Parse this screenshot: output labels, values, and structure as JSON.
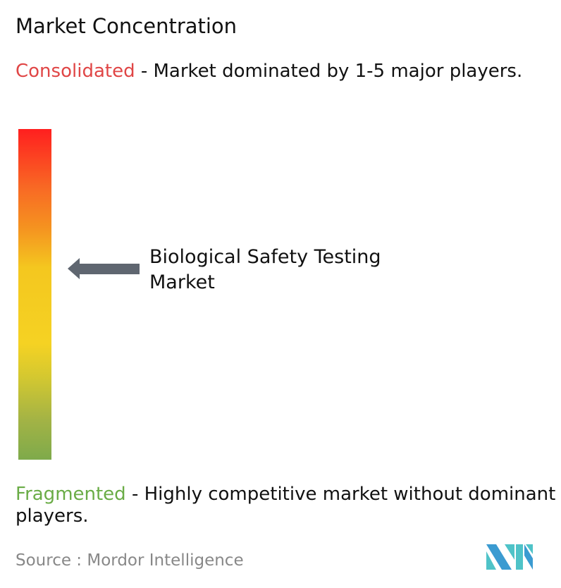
{
  "title": "Market Concentration",
  "consolidated": {
    "label": "Consolidated",
    "description": " - Market dominated by 1-5 major players.",
    "color": "#e04646"
  },
  "fragmented": {
    "label": "Fragmented",
    "description": " - Highly competitive market without dominant players.",
    "color": "#6aac46"
  },
  "scale": {
    "top_color": "#ff1f1f",
    "bottom_color": "#7eaa4b"
  },
  "marker": {
    "label": "Biological Safety Testing Market",
    "icon": "left-arrow-icon",
    "color": "#5f6670"
  },
  "source": "Source :  Mordor Intelligence",
  "logo": {
    "name": "Mordor Intelligence logo",
    "colors": [
      "#3b9bd1",
      "#4fc3c8"
    ]
  }
}
